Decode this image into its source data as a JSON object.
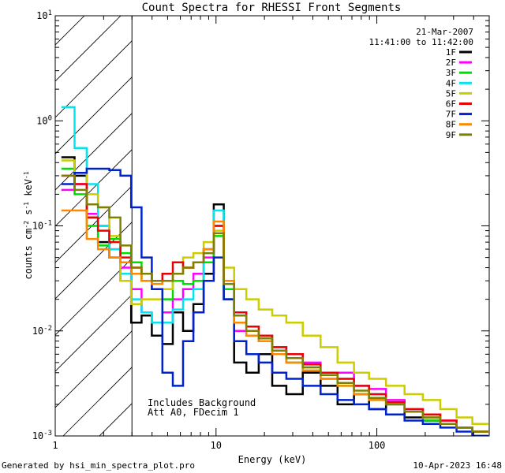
{
  "chart_data": {
    "type": "line",
    "title": "Count Spectra for RHESSI Front Segments",
    "xlabel": "Energy (keV)",
    "ylabel": "counts cm^-2 s^-1 keV^-1",
    "ylabel_parts": {
      "main": "counts cm",
      "exp1": "-2",
      "s": " s",
      "exp2": "-1",
      "kev": " keV",
      "exp3": "-1"
    },
    "xscale": "log",
    "yscale": "log",
    "xlim": [
      1,
      500
    ],
    "ylim": [
      0.001,
      10
    ],
    "x_ticks": [
      {
        "value": 1,
        "label": "1"
      },
      {
        "value": 10,
        "label": "10"
      },
      {
        "value": 100,
        "label": "100"
      }
    ],
    "y_ticks": [
      {
        "value": 10,
        "base": "10",
        "exp": "1"
      },
      {
        "value": 1,
        "base": "10",
        "exp": "0"
      },
      {
        "value": 0.1,
        "base": "10",
        "exp": "-1"
      },
      {
        "value": 0.01,
        "base": "10",
        "exp": "-2"
      },
      {
        "value": 0.001,
        "base": "10",
        "exp": "-3"
      }
    ],
    "date_label": "21-Mar-2007",
    "time_label": "11:41:00 to 11:42:00",
    "hatch_upper_energy_keV": 3,
    "annotations": [
      "Includes Background",
      "Att A0, FDecim 1"
    ],
    "footer_left": "Generated by hsi_min_spectra_plot.pro",
    "footer_right": "10-Apr-2023 16:48",
    "series": [
      {
        "name": "1F",
        "color": "#000000",
        "x": [
          1.2,
          1.45,
          1.7,
          2.0,
          2.35,
          2.75,
          3.2,
          3.7,
          4.3,
          5.0,
          5.8,
          6.7,
          7.8,
          9.0,
          10.4,
          12,
          14,
          17,
          20,
          25,
          30,
          40,
          50,
          65,
          80,
          100,
          130,
          170,
          220,
          280,
          350,
          440
        ],
        "y": [
          0.45,
          0.3,
          0.12,
          0.07,
          0.05,
          0.03,
          0.012,
          0.014,
          0.009,
          0.0075,
          0.015,
          0.01,
          0.018,
          0.035,
          0.16,
          0.02,
          0.005,
          0.004,
          0.006,
          0.003,
          0.0025,
          0.004,
          0.003,
          0.002,
          0.0025,
          0.0018,
          0.002,
          0.0015,
          0.0014,
          0.0013,
          0.0012,
          0.001
        ]
      },
      {
        "name": "2F",
        "color": "#ff00ff",
        "x": [
          1.2,
          1.45,
          1.7,
          2.0,
          2.35,
          2.75,
          3.2,
          3.7,
          4.3,
          5.0,
          5.8,
          6.7,
          7.8,
          9.0,
          10.4,
          12,
          14,
          17,
          20,
          25,
          30,
          40,
          50,
          65,
          80,
          100,
          130,
          170,
          220,
          280,
          350,
          440
        ],
        "y": [
          0.22,
          0.25,
          0.13,
          0.1,
          0.06,
          0.04,
          0.025,
          0.015,
          0.012,
          0.015,
          0.02,
          0.025,
          0.035,
          0.05,
          0.1,
          0.03,
          0.01,
          0.009,
          0.008,
          0.007,
          0.006,
          0.005,
          0.004,
          0.004,
          0.003,
          0.0028,
          0.0022,
          0.0018,
          0.0016,
          0.0014,
          0.0012,
          0.0011
        ]
      },
      {
        "name": "3F",
        "color": "#00dd00",
        "x": [
          1.2,
          1.45,
          1.7,
          2.0,
          2.35,
          2.75,
          3.2,
          3.7,
          4.3,
          5.0,
          5.8,
          6.7,
          7.8,
          9.0,
          10.4,
          12,
          14,
          17,
          20,
          25,
          30,
          40,
          50,
          65,
          80,
          100,
          130,
          170,
          220,
          280,
          350,
          440
        ],
        "y": [
          0.35,
          0.2,
          0.1,
          0.065,
          0.075,
          0.055,
          0.045,
          0.03,
          0.025,
          0.02,
          0.03,
          0.028,
          0.03,
          0.045,
          0.08,
          0.025,
          0.012,
          0.009,
          0.008,
          0.006,
          0.005,
          0.0042,
          0.0035,
          0.003,
          0.0025,
          0.0022,
          0.002,
          0.0017,
          0.0014,
          0.0013,
          0.0012,
          0.0011
        ]
      },
      {
        "name": "4F",
        "color": "#00e5ee",
        "x": [
          1.2,
          1.45,
          1.7,
          2.0,
          2.35,
          2.75,
          3.2,
          3.7,
          4.3,
          5.0,
          5.8,
          6.7,
          7.8,
          9.0,
          10.4,
          12,
          14,
          17,
          20,
          25,
          30,
          40,
          50,
          65,
          80,
          100,
          130,
          170,
          220,
          280,
          350,
          440
        ],
        "y": [
          1.35,
          0.55,
          0.25,
          0.1,
          0.06,
          0.035,
          0.02,
          0.015,
          0.012,
          0.012,
          0.016,
          0.02,
          0.025,
          0.06,
          0.14,
          0.03,
          0.012,
          0.01,
          0.009,
          0.007,
          0.005,
          0.0045,
          0.004,
          0.0035,
          0.003,
          0.0025,
          0.002,
          0.0018,
          0.0015,
          0.0013,
          0.0012,
          0.0011
        ]
      },
      {
        "name": "5F",
        "color": "#cccc00",
        "x": [
          1.2,
          1.45,
          1.7,
          2.0,
          2.35,
          2.75,
          3.2,
          3.7,
          4.3,
          5.0,
          5.8,
          6.7,
          7.8,
          9.0,
          10.4,
          12,
          14,
          17,
          20,
          25,
          30,
          40,
          50,
          65,
          80,
          100,
          130,
          170,
          220,
          280,
          350,
          440
        ],
        "y": [
          0.42,
          0.32,
          0.2,
          0.15,
          0.08,
          0.03,
          0.018,
          0.02,
          0.02,
          0.025,
          0.035,
          0.05,
          0.055,
          0.07,
          0.09,
          0.04,
          0.025,
          0.02,
          0.016,
          0.014,
          0.012,
          0.009,
          0.007,
          0.005,
          0.004,
          0.0035,
          0.003,
          0.0025,
          0.0022,
          0.0018,
          0.0015,
          0.0013
        ]
      },
      {
        "name": "6F",
        "color": "#ee0000",
        "x": [
          1.2,
          1.45,
          1.7,
          2.0,
          2.35,
          2.75,
          3.2,
          3.7,
          4.3,
          5.0,
          5.8,
          6.7,
          7.8,
          9.0,
          10.4,
          12,
          14,
          17,
          20,
          25,
          30,
          40,
          50,
          65,
          80,
          100,
          130,
          170,
          220,
          280,
          350,
          440
        ],
        "y": [
          0.3,
          0.25,
          0.12,
          0.09,
          0.07,
          0.05,
          0.04,
          0.035,
          0.03,
          0.035,
          0.045,
          0.04,
          0.045,
          0.06,
          0.1,
          0.03,
          0.015,
          0.011,
          0.009,
          0.007,
          0.006,
          0.0048,
          0.004,
          0.0035,
          0.003,
          0.0025,
          0.0021,
          0.0018,
          0.0016,
          0.0014,
          0.0012,
          0.0011
        ]
      },
      {
        "name": "7F",
        "color": "#0022cc",
        "x": [
          1.2,
          1.45,
          1.7,
          2.0,
          2.35,
          2.75,
          3.2,
          3.7,
          4.3,
          5.0,
          5.8,
          6.7,
          7.8,
          9.0,
          10.4,
          12,
          14,
          17,
          20,
          25,
          30,
          40,
          50,
          65,
          80,
          100,
          130,
          170,
          220,
          280,
          350,
          440
        ],
        "y": [
          0.25,
          0.32,
          0.35,
          0.35,
          0.34,
          0.3,
          0.15,
          0.05,
          0.025,
          0.004,
          0.003,
          0.008,
          0.015,
          0.03,
          0.05,
          0.02,
          0.008,
          0.006,
          0.005,
          0.004,
          0.0035,
          0.003,
          0.0025,
          0.0022,
          0.002,
          0.0018,
          0.0016,
          0.0014,
          0.0013,
          0.0012,
          0.0011,
          0.001
        ]
      },
      {
        "name": "8F",
        "color": "#ff8800",
        "x": [
          1.2,
          1.45,
          1.7,
          2.0,
          2.35,
          2.75,
          3.2,
          3.7,
          4.3,
          5.0,
          5.8,
          6.7,
          7.8,
          9.0,
          10.4,
          12,
          14,
          17,
          20,
          25,
          30,
          40,
          50,
          65,
          80,
          100,
          130,
          170,
          220,
          280,
          350,
          440
        ],
        "y": [
          0.14,
          0.14,
          0.075,
          0.06,
          0.05,
          0.045,
          0.035,
          0.03,
          0.028,
          0.03,
          0.035,
          0.04,
          0.045,
          0.06,
          0.11,
          0.03,
          0.012,
          0.009,
          0.008,
          0.006,
          0.005,
          0.0042,
          0.0035,
          0.003,
          0.0025,
          0.0022,
          0.002,
          0.0017,
          0.0015,
          0.0013,
          0.0012,
          0.0011
        ]
      },
      {
        "name": "9F",
        "color": "#808000",
        "x": [
          1.2,
          1.45,
          1.7,
          2.0,
          2.35,
          2.75,
          3.2,
          3.7,
          4.3,
          5.0,
          5.8,
          6.7,
          7.8,
          9.0,
          10.4,
          12,
          14,
          17,
          20,
          25,
          30,
          40,
          50,
          65,
          80,
          100,
          130,
          170,
          220,
          280,
          350,
          440
        ],
        "y": [
          0.3,
          0.22,
          0.16,
          0.15,
          0.12,
          0.065,
          0.04,
          0.035,
          0.03,
          0.03,
          0.035,
          0.04,
          0.045,
          0.055,
          0.085,
          0.028,
          0.014,
          0.01,
          0.0085,
          0.0065,
          0.0055,
          0.0045,
          0.0038,
          0.0032,
          0.0027,
          0.0023,
          0.002,
          0.0017,
          0.0015,
          0.0013,
          0.0012,
          0.0011
        ]
      }
    ]
  }
}
